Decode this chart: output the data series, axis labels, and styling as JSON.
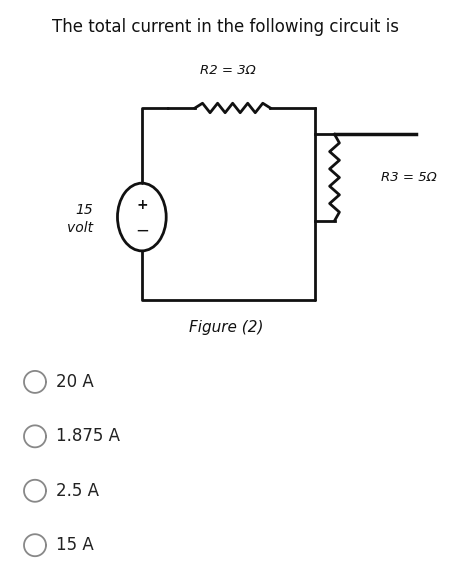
{
  "title": "The total current in the following circuit is",
  "title_fontsize": 12,
  "circuit_bg_color": "#d8d4cc",
  "options": [
    "20 A",
    "1.875 A",
    "2.5 A",
    "15 A"
  ],
  "option_bg_colors": [
    "#ffffff",
    "#ebebeb",
    "#ffffff",
    "#ffffff"
  ],
  "voltage_label_1": "15",
  "voltage_label_2": "volt",
  "r2_label": "R2 = 3Ω",
  "r3_label": "R3 = 5Ω",
  "figure_label": "Figure (2)",
  "fig_width": 4.52,
  "fig_height": 5.73,
  "fig_dpi": 100
}
